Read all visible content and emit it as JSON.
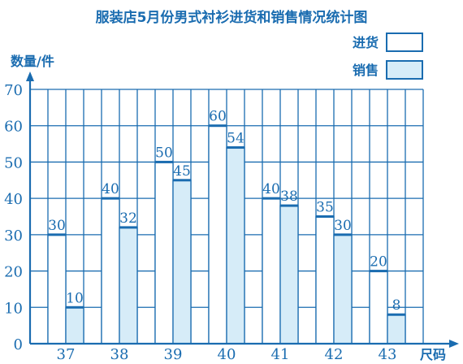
{
  "chart_data": {
    "type": "bar",
    "title": "服装店5月份男式衬衫进货和销售情况统计图",
    "ylabel": "数量/件",
    "xlabel": "尺码",
    "categories": [
      "37",
      "38",
      "39",
      "40",
      "41",
      "42",
      "43"
    ],
    "series": [
      {
        "name": "进货",
        "values": [
          30,
          40,
          50,
          60,
          40,
          35,
          20
        ]
      },
      {
        "name": "销售",
        "values": [
          10,
          32,
          45,
          54,
          38,
          30,
          8
        ]
      }
    ],
    "ylim": [
      0,
      70
    ],
    "yticks": [
      "0",
      "10",
      "20",
      "30",
      "40",
      "50",
      "60",
      "70"
    ],
    "grid": true,
    "legend_position": "top-right",
    "colors": {
      "ink": "#1a6cb0",
      "purchase_fill": "#ffffff",
      "sales_fill": "#d6ecf8"
    }
  }
}
